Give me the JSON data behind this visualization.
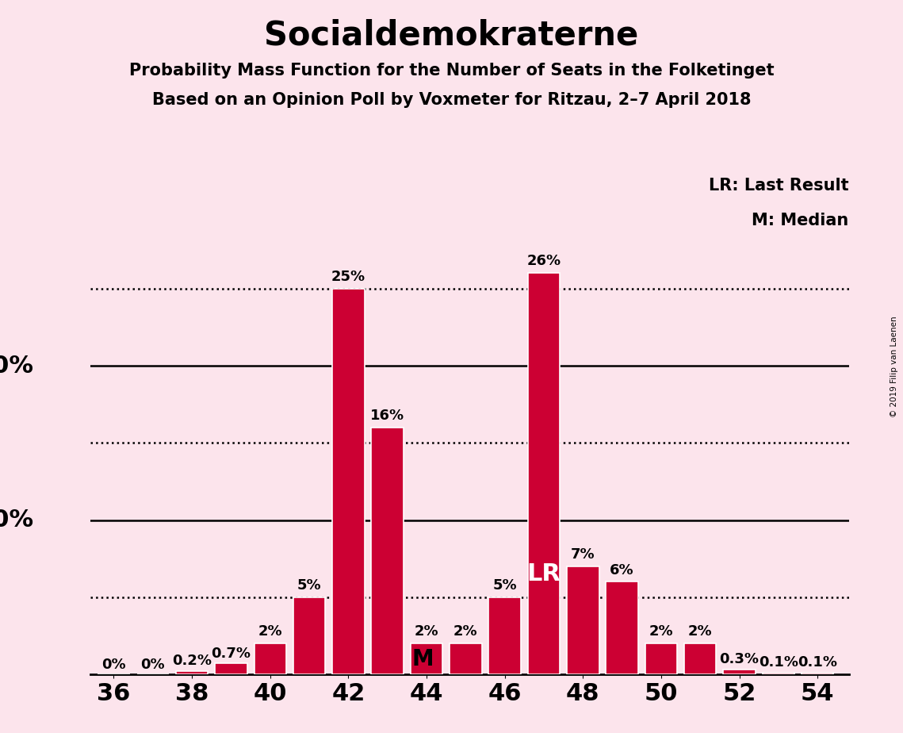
{
  "title": "Socialdemokraterne",
  "subtitle1": "Probability Mass Function for the Number of Seats in the Folketinget",
  "subtitle2": "Based on an Opinion Poll by Voxmeter for Ritzau, 2–7 April 2018",
  "copyright": "© 2019 Filip van Laenen",
  "background_color": "#fce4ec",
  "bar_color": "#cc0033",
  "seats": [
    36,
    37,
    38,
    39,
    40,
    41,
    42,
    43,
    44,
    45,
    46,
    47,
    48,
    49,
    50,
    51,
    52,
    53,
    54
  ],
  "probs": [
    0.0,
    0.0,
    0.2,
    0.7,
    2.0,
    5.0,
    25.0,
    16.0,
    2.0,
    2.0,
    5.0,
    26.0,
    7.0,
    6.0,
    2.0,
    2.0,
    0.3,
    0.1,
    0.1
  ],
  "bar_labels": [
    "0%",
    "0%",
    "0.2%",
    "0.7%",
    "2%",
    "5%",
    "25%",
    "16%",
    "2%",
    "2%",
    "5%",
    "26%",
    "7%",
    "6%",
    "2%",
    "2%",
    "0.3%",
    "0.1%",
    "0.1%"
  ],
  "median_seat": 44,
  "last_result_seat": 47,
  "xticks": [
    36,
    38,
    40,
    42,
    44,
    46,
    48,
    50,
    52,
    54
  ],
  "ylim_max": 28.5,
  "legend_lr": "LR: Last Result",
  "legend_m": "M: Median",
  "title_fontsize": 30,
  "subtitle_fontsize": 15,
  "axis_fontsize": 22,
  "label_fontsize": 13
}
